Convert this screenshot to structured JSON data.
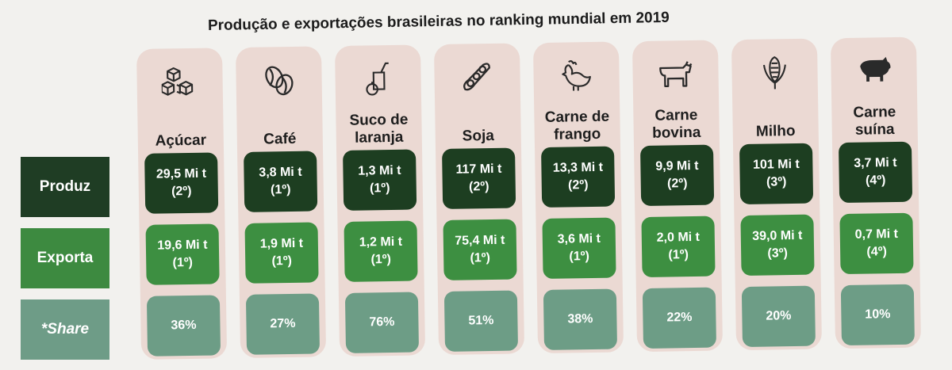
{
  "title": "Produção e exportações brasileiras no ranking mundial em 2019",
  "row_labels": {
    "produz": "Produz",
    "exporta": "Exporta",
    "share": "*Share"
  },
  "products": [
    {
      "name": "Açúcar",
      "icon": "sugar-cubes-icon",
      "prod_value": "29,5 Mi t",
      "prod_rank": "(2º)",
      "exp_value": "19,6 Mi t",
      "exp_rank": "(1º)",
      "share": "36%"
    },
    {
      "name": "Café",
      "icon": "coffee-bean-icon",
      "prod_value": "3,8 Mi t",
      "prod_rank": "(1º)",
      "exp_value": "1,9 Mi t",
      "exp_rank": "(1º)",
      "share": "27%"
    },
    {
      "name": "Suco de laranja",
      "icon": "orange-juice-icon",
      "prod_value": "1,3 Mi t",
      "prod_rank": "(1º)",
      "exp_value": "1,2 Mi t",
      "exp_rank": "(1º)",
      "share": "76%"
    },
    {
      "name": "Soja",
      "icon": "soybean-pod-icon",
      "prod_value": "117 Mi t",
      "prod_rank": "(2º)",
      "exp_value": "75,4 Mi t",
      "exp_rank": "(1º)",
      "share": "51%"
    },
    {
      "name": "Carne de frango",
      "icon": "chicken-icon",
      "prod_value": "13,3 Mi t",
      "prod_rank": "(2º)",
      "exp_value": "3,6 Mi t",
      "exp_rank": "(1º)",
      "share": "38%"
    },
    {
      "name": "Carne bovina",
      "icon": "cow-icon",
      "prod_value": "9,9 Mi t",
      "prod_rank": "(2º)",
      "exp_value": "2,0 Mi t",
      "exp_rank": "(1º)",
      "share": "22%"
    },
    {
      "name": "Milho",
      "icon": "corn-icon",
      "prod_value": "101 Mi t",
      "prod_rank": "(3º)",
      "exp_value": "39,0 Mi t",
      "exp_rank": "(3º)",
      "share": "20%"
    },
    {
      "name": "Carne suína",
      "icon": "pig-icon",
      "prod_value": "3,7 Mi t",
      "prod_rank": "(4º)",
      "exp_value": "0,7 Mi t",
      "exp_rank": "(4º)",
      "share": "10%"
    }
  ]
}
